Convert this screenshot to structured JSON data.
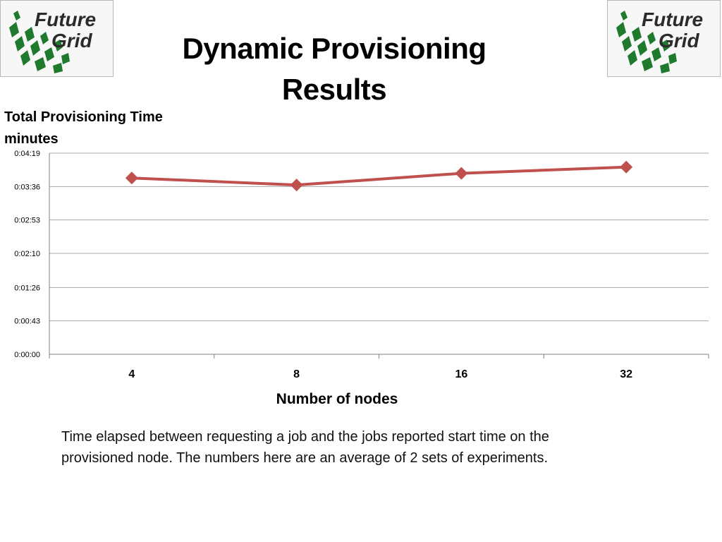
{
  "logo": {
    "text_line1": "Future",
    "text_line2": "Grid"
  },
  "slide": {
    "title_line1": "Dynamic Provisioning",
    "title_line2": "Results",
    "description_line1": "Time elapsed between requesting a job and the jobs reported start time on the",
    "description_line2": "provisioned node. The numbers here are an average of 2 sets of experiments."
  },
  "chart_data": {
    "type": "line",
    "ylabel_line1": "Total Provisioning Time",
    "ylabel_line2": "minutes",
    "xlabel": "Number of nodes",
    "categories": [
      "4",
      "8",
      "16",
      "32"
    ],
    "y_ticks": [
      "0:00:00",
      "0:00:43",
      "0:01:26",
      "0:02:10",
      "0:02:53",
      "0:03:36",
      "0:04:19"
    ],
    "y_tick_seconds": [
      0,
      43,
      86,
      130,
      173,
      216,
      259
    ],
    "ylim": [
      "0:00:00",
      "0:04:19"
    ],
    "grid": true,
    "legend": "none",
    "series": [
      {
        "values": [
          "0:03:47",
          "0:03:38",
          "0:03:53",
          "0:04:01"
        ],
        "values_seconds": [
          227,
          218,
          233,
          241
        ]
      }
    ],
    "colors": {
      "line": "#C0504D",
      "grid": "#a6a6a6",
      "axis": "#808080"
    }
  }
}
